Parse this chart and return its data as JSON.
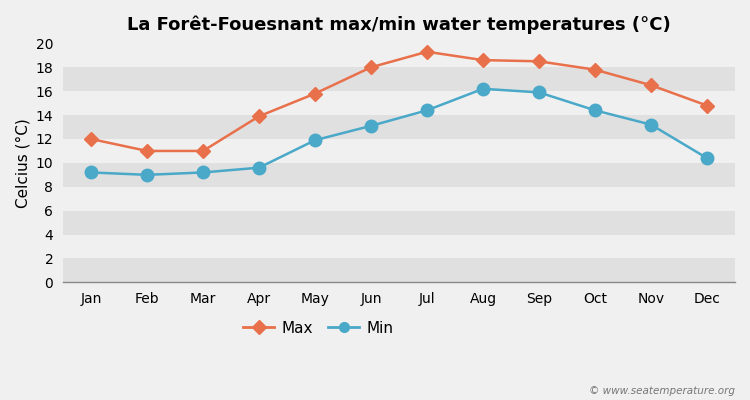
{
  "title": "La Forêt-Fouesnant max/min water temperatures (°C)",
  "ylabel": "Celcius (°C)",
  "months": [
    "Jan",
    "Feb",
    "Mar",
    "Apr",
    "May",
    "Jun",
    "Jul",
    "Aug",
    "Sep",
    "Oct",
    "Nov",
    "Dec"
  ],
  "max_temps": [
    12.0,
    11.0,
    11.0,
    13.9,
    15.8,
    18.0,
    19.3,
    18.6,
    18.5,
    17.8,
    16.5,
    14.8
  ],
  "min_temps": [
    9.2,
    9.0,
    9.2,
    9.6,
    11.9,
    13.1,
    14.4,
    16.2,
    15.9,
    14.4,
    13.2,
    10.4
  ],
  "max_color": "#e8704a",
  "min_color": "#4aa8c8",
  "bg_color": "#f0f0f0",
  "plot_bg_color": "#ffffff",
  "band_light": "#f0f0f0",
  "band_dark": "#e0e0e0",
  "ylim": [
    0,
    20
  ],
  "yticks": [
    0,
    2,
    4,
    6,
    8,
    10,
    12,
    14,
    16,
    18,
    20
  ],
  "watermark": "© www.seatemperature.org",
  "legend_max": "Max",
  "legend_min": "Min",
  "max_marker": "D",
  "min_marker": "o",
  "max_markersize": 7,
  "min_markersize": 9,
  "linewidth": 1.8
}
